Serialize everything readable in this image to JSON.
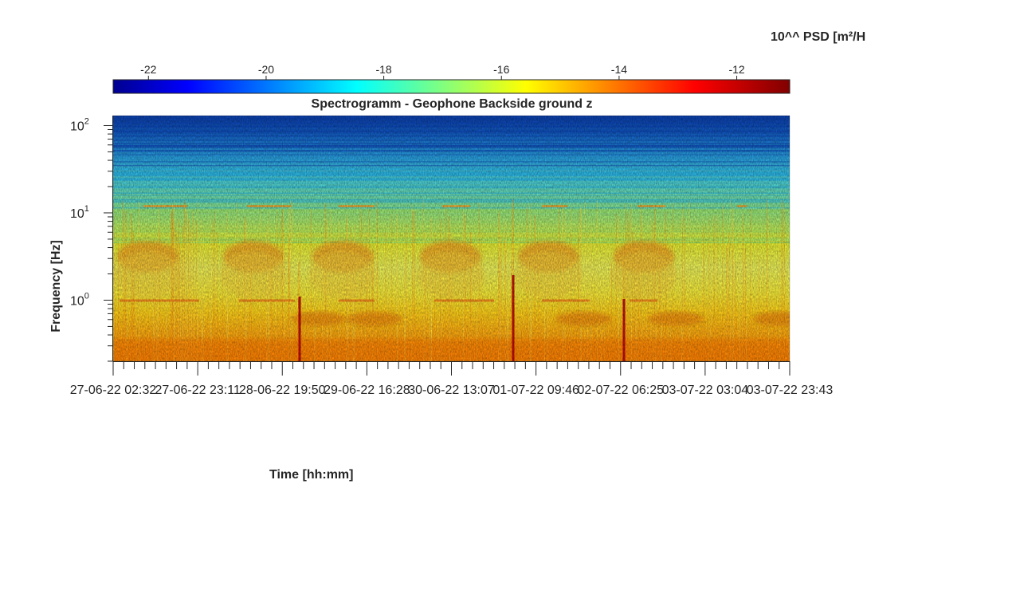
{
  "chart_data": {
    "type": "heatmap",
    "title": "Spectrogramm - Geophone Backside ground z",
    "xlabel": "Time [hh:mm]",
    "ylabel": "Frequency [Hz]",
    "y_scale": "log",
    "ylim": [
      0.2,
      130
    ],
    "y_ticks": [
      {
        "value": 100,
        "base": "10",
        "exp": "2"
      },
      {
        "value": 10,
        "base": "10",
        "exp": "1"
      },
      {
        "value": 1,
        "base": "10",
        "exp": "0"
      }
    ],
    "x_ticks": [
      "27-06-22 02:32",
      "27-06-22 23:11",
      "28-06-22 19:50",
      "29-06-22 16:28",
      "30-06-22 13:07",
      "01-07-22 09:46",
      "02-07-22 06:25",
      "03-07-22 03:04",
      "03-07-22 23:43"
    ],
    "colorbar": {
      "label": "10^^ PSD [m²/H",
      "colormap": "jet",
      "range": [
        -22.6,
        -11.1
      ],
      "ticks": [
        "-22",
        "-20",
        "-18",
        "-16",
        "-14",
        "-12"
      ],
      "tick_values": [
        -22,
        -20,
        -18,
        -16,
        -14,
        -12
      ]
    },
    "features": {
      "activity_bursts_hz": [
        2,
        5
      ],
      "line_at_hz": 1.0,
      "line_at_hz_2": 12,
      "transient_spikes": [
        "01-07-22 ~00:30",
        "02-07-22 ~06:25",
        "28-06-22 ~23:00"
      ]
    }
  }
}
